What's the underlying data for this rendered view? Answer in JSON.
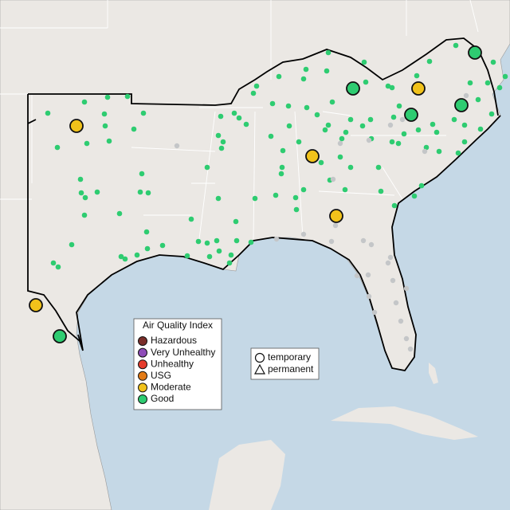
{
  "legend": {
    "title": "Air Quality Index",
    "items": [
      {
        "label": "Hazardous",
        "color": "#7a2e2a"
      },
      {
        "label": "Very Unhealthy",
        "color": "#8e4cb8"
      },
      {
        "label": "Unhealthy",
        "color": "#e53b2c"
      },
      {
        "label": "USG",
        "color": "#e37b16"
      },
      {
        "label": "Moderate",
        "color": "#f1c21b"
      },
      {
        "label": "Good",
        "color": "#2ecc71"
      }
    ]
  },
  "shape_legend": {
    "items": [
      "temporary",
      "permanent"
    ]
  }
}
